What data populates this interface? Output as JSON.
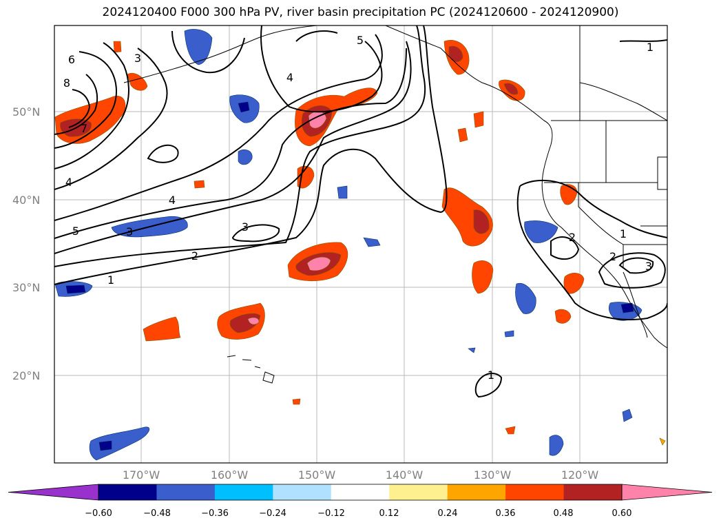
{
  "title": "2024120400 F000 300 hPa PV, river basin precipitation PC (2024120600 - 2024120900)",
  "lat_labels": [
    "50°N",
    "40°N",
    "30°N",
    "20°N"
  ],
  "lon_labels": [
    "170°W",
    "160°W",
    "150°W",
    "140°W",
    "130°W",
    "120°W"
  ],
  "contour_labels": [
    "1",
    "2",
    "3",
    "4",
    "5",
    "6",
    "7",
    "8"
  ],
  "colorbar": {
    "ticks": [
      "−0.60",
      "−0.48",
      "−0.36",
      "−0.24",
      "−0.12",
      "0.12",
      "0.24",
      "0.36",
      "0.48",
      "0.60"
    ],
    "colors": [
      "#9932cc",
      "#00008b",
      "#3a5fcd",
      "#00bfff",
      "#b0e2ff",
      "#ffffff",
      "#fff08f",
      "#ffa500",
      "#ff4500",
      "#b22222",
      "#ff82ab"
    ]
  }
}
